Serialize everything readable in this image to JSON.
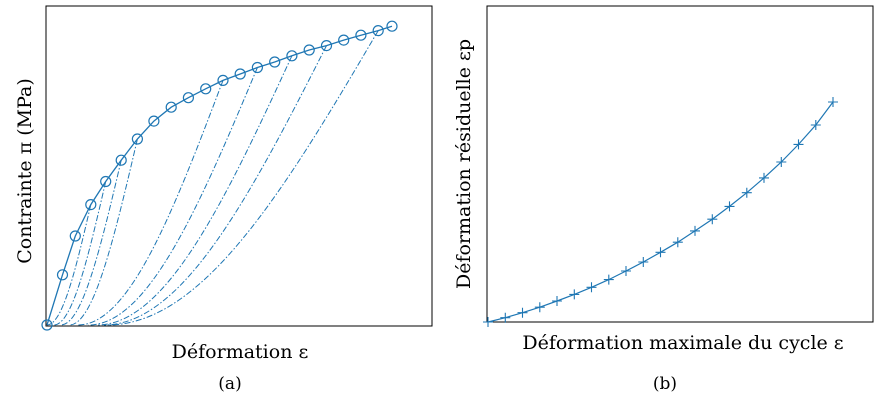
{
  "chart_data": [
    {
      "type": "line",
      "panel_label": "(a)",
      "xlabel": "Déformation ε",
      "ylabel": "Contrainte π (MPa)",
      "ticks": "none",
      "grid": false,
      "xlim": [
        0,
        1
      ],
      "ylim": [
        0,
        1
      ],
      "color": "#1f77b4",
      "envelope": {
        "marker": "circle",
        "x": [
          0.0,
          0.045,
          0.082,
          0.127,
          0.17,
          0.215,
          0.262,
          0.31,
          0.36,
          0.41,
          0.46,
          0.51,
          0.56,
          0.61,
          0.66,
          0.71,
          0.76,
          0.81,
          0.86,
          0.91,
          0.96,
          1.0
        ],
        "y": [
          0.0,
          0.163,
          0.289,
          0.391,
          0.466,
          0.535,
          0.604,
          0.662,
          0.707,
          0.738,
          0.767,
          0.794,
          0.815,
          0.836,
          0.854,
          0.874,
          0.893,
          0.907,
          0.925,
          0.941,
          0.956,
          0.97
        ]
      },
      "unloading": {
        "linestyle": "dashdot",
        "from_envelope_points": [
          3,
          4,
          5,
          6,
          11,
          13,
          15,
          17,
          20
        ],
        "residual_x": [
          0.0,
          0.02,
          0.04,
          0.065,
          0.09,
          0.12,
          0.145,
          0.165,
          0.175
        ]
      }
    },
    {
      "type": "line",
      "panel_label": "(b)",
      "xlabel": "Déformation maximale du cycle ε",
      "ylabel": "Déformation résiduelle εp",
      "ticks": "none",
      "grid": false,
      "xlim": [
        0,
        1
      ],
      "ylim": [
        0,
        1
      ],
      "color": "#1f77b4",
      "marker": "plus",
      "x": [
        0.0,
        0.05,
        0.1,
        0.15,
        0.2,
        0.25,
        0.3,
        0.35,
        0.4,
        0.45,
        0.5,
        0.55,
        0.6,
        0.65,
        0.7,
        0.75,
        0.8,
        0.85,
        0.9,
        0.95,
        1.0
      ],
      "y": [
        0.0,
        0.011,
        0.024,
        0.038,
        0.054,
        0.071,
        0.089,
        0.109,
        0.131,
        0.154,
        0.179,
        0.205,
        0.234,
        0.264,
        0.297,
        0.332,
        0.37,
        0.411,
        0.456,
        0.506,
        0.565
      ]
    }
  ]
}
